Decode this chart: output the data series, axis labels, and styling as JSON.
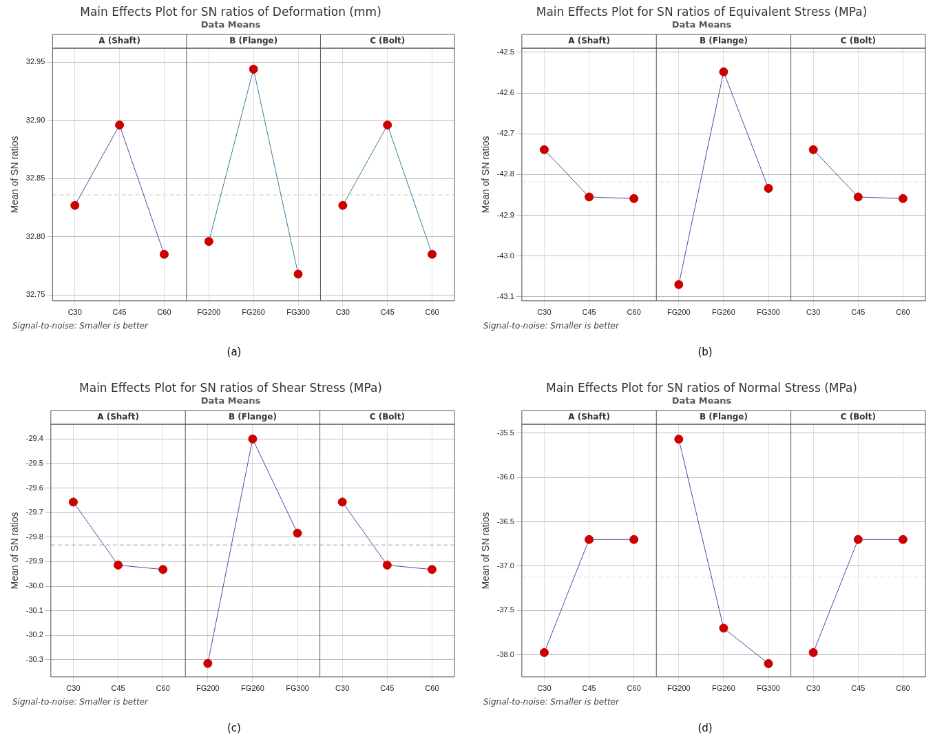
{
  "chart_data": [
    {
      "type": "line",
      "title": "Main Effects Plot for SN ratios of Deformation (mm)",
      "subtitle": "Data Means",
      "ylabel": "Mean of SN ratios",
      "categories": [
        "C30",
        "C45",
        "C60",
        "FG200",
        "FG260",
        "FG300",
        "C30",
        "C45",
        "C60"
      ],
      "series": [
        {
          "color": "#4a4aa8",
          "colors": [
            "#cc0000",
            "#cc0000",
            "#cc0000",
            null,
            null,
            null,
            null,
            null,
            null
          ],
          "values": [
            32.827,
            32.896,
            32.785,
            null,
            null,
            null,
            null,
            null,
            null
          ]
        },
        {
          "color": "#3a7a9a",
          "colors": [
            null,
            null,
            null,
            "#cc0000",
            "#cc0000",
            "#cc0000",
            null,
            null,
            null
          ],
          "values": [
            null,
            null,
            null,
            32.796,
            32.944,
            32.768,
            null,
            null,
            null
          ]
        },
        {
          "color": "#3a7a9a",
          "colors": [
            null,
            null,
            null,
            null,
            null,
            null,
            "#cc0000",
            "#cc0000",
            "#cc0000"
          ],
          "values": [
            null,
            null,
            null,
            null,
            null,
            null,
            32.827,
            32.896,
            32.785
          ]
        }
      ],
      "ylim": [
        32.745,
        32.962
      ],
      "yticks": [
        32.75,
        {
          "value": 32.8,
          "label": "32.80"
        },
        32.85,
        {
          "value": 32.9,
          "label": "32.90"
        },
        32.95
      ],
      "grid": true,
      "legend": false,
      "marker": "circle",
      "line_style": "solid",
      "ref_lines": [
        {
          "axis": "y",
          "value": 32.836,
          "color": "#b8d8b8",
          "line_style": "dashed"
        }
      ],
      "annotations": [
        "A (Shaft)",
        "B (Flange)",
        "C (Bolt)",
        "Signal-to-noise: Smaller is better",
        "(a)"
      ]
    },
    {
      "type": "line",
      "title": "Main Effects Plot for SN ratios of Equivalent Stress (MPa)",
      "subtitle": "Data Means",
      "ylabel": "Mean of SN ratios",
      "categories": [
        "C30",
        "C45",
        "C60",
        "FG200",
        "FG260",
        "FG300",
        "C30",
        "C45",
        "C60"
      ],
      "series": [
        {
          "color": "#4a4aa8",
          "colors": [
            "#cc0000",
            "#cc0000",
            "#cc0000",
            null,
            null,
            null,
            null,
            null,
            null
          ],
          "values": [
            -42.739,
            -42.855,
            -42.859,
            null,
            null,
            null,
            null,
            null,
            null
          ]
        },
        {
          "color": "#4a4aa8",
          "colors": [
            null,
            null,
            null,
            "#cc0000",
            "#cc0000",
            "#cc0000",
            null,
            null,
            null
          ],
          "values": [
            null,
            null,
            null,
            -43.07,
            -42.548,
            -42.834,
            null,
            null,
            null
          ]
        },
        {
          "color": "#4a4aa8",
          "colors": [
            null,
            null,
            null,
            null,
            null,
            null,
            "#cc0000",
            "#cc0000",
            "#cc0000"
          ],
          "values": [
            null,
            null,
            null,
            null,
            null,
            null,
            -42.739,
            -42.855,
            -42.859
          ]
        }
      ],
      "ylim": [
        -43.11,
        -42.49
      ],
      "yticks": [
        -43.1,
        {
          "value": -43,
          "label": "-43.0"
        },
        -42.9,
        -42.8,
        -42.7,
        -42.6,
        -42.5
      ],
      "grid": true,
      "legend": false,
      "marker": "circle",
      "line_style": "solid",
      "ref_lines": [
        {
          "axis": "y",
          "value": -42.818,
          "color": "#d8e8d8",
          "line_style": "dashed"
        }
      ],
      "annotations": [
        "A (Shaft)",
        "B (Flange)",
        "C (Bolt)",
        "Signal-to-noise: Smaller is better",
        "(b)"
      ]
    },
    {
      "type": "line",
      "title": "Main Effects Plot for SN ratios of Shear Stress (MPa)",
      "subtitle": "Data Means",
      "ylabel": "Mean of SN ratios",
      "categories": [
        "C30",
        "C45",
        "C60",
        "FG200",
        "FG260",
        "FG300",
        "C30",
        "C45",
        "C60"
      ],
      "series": [
        {
          "color": "#4a4aa8",
          "colors": [
            "#cc0000",
            "#cc0000",
            "#cc0000",
            null,
            null,
            null,
            null,
            null,
            null
          ],
          "values": [
            -29.657,
            -29.914,
            -29.932,
            null,
            null,
            null,
            null,
            null,
            null
          ]
        },
        {
          "color": "#4a4aa8",
          "colors": [
            null,
            null,
            null,
            "#cc0000",
            "#cc0000",
            "#cc0000",
            null,
            null,
            null
          ],
          "values": [
            null,
            null,
            null,
            -30.315,
            -29.4,
            -29.784,
            null,
            null,
            null
          ]
        },
        {
          "color": "#4a4aa8",
          "colors": [
            null,
            null,
            null,
            null,
            null,
            null,
            "#cc0000",
            "#cc0000",
            "#cc0000"
          ],
          "values": [
            null,
            null,
            null,
            null,
            null,
            null,
            -29.657,
            -29.914,
            -29.932
          ]
        }
      ],
      "ylim": [
        -30.37,
        -29.34
      ],
      "yticks": [
        -30.3,
        -30.2,
        -30.1,
        {
          "value": -30,
          "label": "-30.0"
        },
        -29.9,
        -29.8,
        -29.7,
        -29.6,
        -29.5,
        -29.4
      ],
      "grid": true,
      "legend": false,
      "marker": "circle",
      "line_style": "solid",
      "ref_lines": [
        {
          "axis": "y",
          "value": -29.832,
          "color": "#999999",
          "line_style": "dashed"
        }
      ],
      "annotations": [
        "A (Shaft)",
        "B (Flange)",
        "C (Bolt)",
        "Signal-to-noise: Smaller is better",
        "(c)"
      ]
    },
    {
      "type": "line",
      "title": "Main Effects Plot for SN ratios of Normal Stress (MPa)",
      "subtitle": "Data Means",
      "ylabel": "Mean of SN ratios",
      "categories": [
        "C30",
        "C45",
        "C60",
        "FG200",
        "FG260",
        "FG300",
        "C30",
        "C45",
        "C60"
      ],
      "series": [
        {
          "color": "#4a4aa8",
          "colors": [
            "#cc0000",
            "#cc0000",
            "#cc0000",
            null,
            null,
            null,
            null,
            null,
            null
          ],
          "values": [
            -37.975,
            -36.7,
            -36.7,
            null,
            null,
            null,
            null,
            null,
            null
          ]
        },
        {
          "color": "#4a4aa8",
          "colors": [
            null,
            null,
            null,
            "#cc0000",
            "#cc0000",
            "#cc0000",
            null,
            null,
            null
          ],
          "values": [
            null,
            null,
            null,
            -35.568,
            -37.7,
            -38.1,
            null,
            null,
            null
          ]
        },
        {
          "color": "#4a4aa8",
          "colors": [
            null,
            null,
            null,
            null,
            null,
            null,
            "#cc0000",
            "#cc0000",
            "#cc0000"
          ],
          "values": [
            null,
            null,
            null,
            null,
            null,
            null,
            -37.975,
            -36.7,
            -36.7
          ]
        }
      ],
      "ylim": [
        -38.25,
        -35.4
      ],
      "yticks": [
        {
          "value": -38,
          "label": "-38.0"
        },
        -37.5,
        {
          "value": -37,
          "label": "-37.0"
        },
        -36.5,
        {
          "value": -36,
          "label": "-36.0"
        },
        -35.5
      ],
      "grid": true,
      "legend": false,
      "marker": "circle",
      "line_style": "solid",
      "ref_lines": [
        {
          "axis": "y",
          "value": -37.125,
          "color": "#d8e8d8",
          "line_style": "dashed"
        }
      ],
      "annotations": [
        "A (Shaft)",
        "B (Flange)",
        "C (Bolt)",
        "Signal-to-noise: Smaller is better",
        "(d)"
      ]
    }
  ]
}
